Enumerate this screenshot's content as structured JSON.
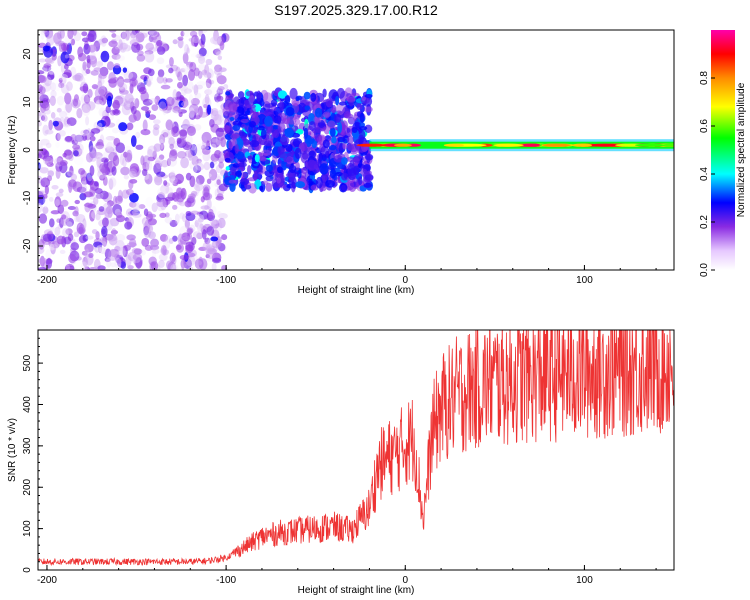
{
  "chart_data": [
    {
      "type": "heatmap",
      "title": "S197.2025.329.17.00.R12",
      "xlabel": "Height of straight line (km)",
      "ylabel": "Frequency (Hz)",
      "xlim": [
        -205,
        150
      ],
      "ylim": [
        -25,
        25
      ],
      "xticks": [
        -200,
        -100,
        0,
        100
      ],
      "yticks": [
        20,
        10,
        0,
        -10,
        -20
      ],
      "colorbar": {
        "label": "Normalized spectral amplitude",
        "range": [
          0.0,
          1.0
        ],
        "ticks": [
          "0.0",
          "0.2",
          "0.4",
          "0.6",
          "0.8"
        ],
        "colors": [
          "#ffffff",
          "#8a2be2",
          "#0000ff",
          "#00ffff",
          "#00ff00",
          "#ffff00",
          "#ff8c00",
          "#ff0000",
          "#ff00aa"
        ]
      },
      "regions": [
        {
          "name": "scattered noise",
          "x_range": [
            -205,
            -100
          ],
          "freq_range": [
            -25,
            25
          ],
          "amplitude": [
            0.0,
            0.15
          ]
        },
        {
          "name": "clustered signal",
          "x_range": [
            -100,
            -20
          ],
          "freq_range": [
            -8,
            12
          ],
          "amplitude": [
            0.1,
            0.3
          ]
        },
        {
          "name": "steady tone",
          "x_range": [
            -20,
            150
          ],
          "freq": 1,
          "amplitude": [
            0.5,
            0.95
          ]
        }
      ]
    },
    {
      "type": "line",
      "xlabel": "Height of straight line (km)",
      "ylabel": "SNR (10 * v/v)",
      "xlim": [
        -205,
        150
      ],
      "ylim": [
        0,
        580
      ],
      "xticks": [
        -200,
        -100,
        0,
        100
      ],
      "yticks": [
        0,
        100,
        200,
        300,
        400,
        500
      ],
      "color": "#ee3333",
      "x": [
        -205,
        -180,
        -150,
        -120,
        -110,
        -100,
        -90,
        -80,
        -70,
        -60,
        -50,
        -40,
        -30,
        -20,
        -15,
        -10,
        -5,
        0,
        5,
        10,
        15,
        20,
        30,
        40,
        50,
        60,
        80,
        100,
        120,
        140,
        150
      ],
      "values": [
        20,
        20,
        20,
        20,
        22,
        30,
        55,
        80,
        90,
        95,
        100,
        105,
        95,
        150,
        250,
        270,
        280,
        305,
        320,
        120,
        330,
        390,
        425,
        445,
        455,
        460,
        470,
        478,
        488,
        495,
        500
      ]
    }
  ]
}
